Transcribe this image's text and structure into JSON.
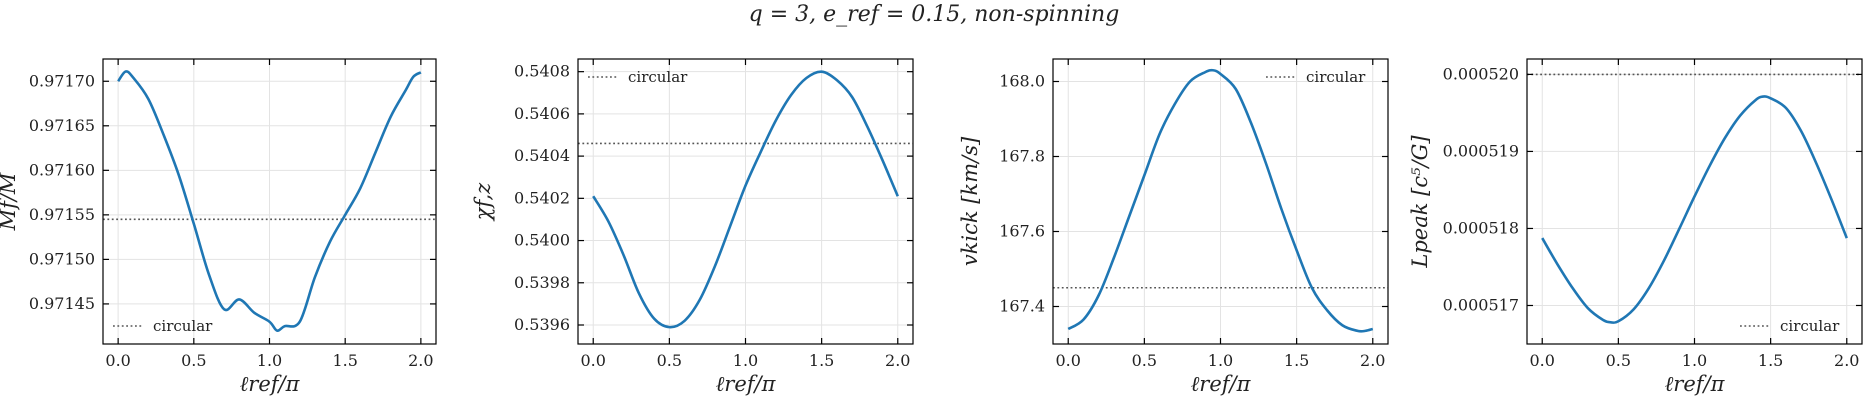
{
  "suptitle": "q = 3,  e_ref = 0.15,  non-spinning",
  "colors": {
    "series": "#1f77b4",
    "circular": "#555555",
    "grid": "#e3e3e3",
    "axis": "#000000"
  },
  "chart_data": [
    {
      "type": "line",
      "title": "",
      "xlabel": "ℓref/π",
      "ylabel": "Mf/M",
      "xlim": [
        -0.1,
        2.1
      ],
      "ylim": [
        0.971405,
        0.971725
      ],
      "xticks": [
        0.0,
        0.5,
        1.0,
        1.5,
        2.0
      ],
      "xtick_labels": [
        "0.0",
        "0.5",
        "1.0",
        "1.5",
        "2.0"
      ],
      "yticks": [
        0.97145,
        0.9715,
        0.97155,
        0.9716,
        0.97165,
        0.9717
      ],
      "ytick_labels": [
        "0.97145",
        "0.97150",
        "0.97155",
        "0.97160",
        "0.97165",
        "0.97170"
      ],
      "grid": true,
      "legend": {
        "placement": "lower-left",
        "entries": [
          "circular"
        ]
      },
      "series": [
        {
          "x": [
            0.0,
            0.05,
            0.1,
            0.2,
            0.3,
            0.4,
            0.5,
            0.6,
            0.7,
            0.8,
            0.9,
            1.0,
            1.05,
            1.1,
            1.2,
            1.3,
            1.4,
            1.5,
            1.6,
            1.7,
            1.8,
            1.9,
            1.95,
            2.0
          ],
          "y": [
            0.9717,
            0.971711,
            0.971704,
            0.97168,
            0.97164,
            0.971595,
            0.97154,
            0.971483,
            0.971444,
            0.971455,
            0.97144,
            0.97143,
            0.97142,
            0.971425,
            0.97143,
            0.97148,
            0.97152,
            0.97155,
            0.97158,
            0.97162,
            0.97166,
            0.97169,
            0.971705,
            0.97171
          ]
        }
      ],
      "reference": {
        "label": "circular",
        "y": 0.971545
      }
    },
    {
      "type": "line",
      "title": "",
      "xlabel": "ℓref/π",
      "ylabel": "χf,z",
      "xlim": [
        -0.1,
        2.1
      ],
      "ylim": [
        0.53951,
        0.54086
      ],
      "xticks": [
        0.0,
        0.5,
        1.0,
        1.5,
        2.0
      ],
      "xtick_labels": [
        "0.0",
        "0.5",
        "1.0",
        "1.5",
        "2.0"
      ],
      "yticks": [
        0.5396,
        0.5398,
        0.54,
        0.5402,
        0.5404,
        0.5406,
        0.5408
      ],
      "ytick_labels": [
        "0.5396",
        "0.5398",
        "0.5400",
        "0.5402",
        "0.5404",
        "0.5406",
        "0.5408"
      ],
      "grid": true,
      "legend": {
        "placement": "upper-left",
        "entries": [
          "circular"
        ]
      },
      "series": [
        {
          "x": [
            0.0,
            0.1,
            0.2,
            0.3,
            0.4,
            0.5,
            0.6,
            0.7,
            0.8,
            0.9,
            1.0,
            1.1,
            1.2,
            1.3,
            1.4,
            1.5,
            1.6,
            1.7,
            1.8,
            1.9,
            2.0
          ],
          "y": [
            0.54021,
            0.54009,
            0.53993,
            0.53975,
            0.53963,
            0.53959,
            0.53962,
            0.53972,
            0.53988,
            0.54007,
            0.54026,
            0.54042,
            0.54057,
            0.54069,
            0.54077,
            0.5408,
            0.54076,
            0.54068,
            0.54054,
            0.54038,
            0.54021
          ]
        }
      ],
      "reference": {
        "label": "circular",
        "y": 0.54046
      }
    },
    {
      "type": "line",
      "title": "",
      "xlabel": "ℓref/π",
      "ylabel": "vkick [km/s]",
      "xlim": [
        -0.1,
        2.1
      ],
      "ylim": [
        167.3,
        168.06
      ],
      "xticks": [
        0.0,
        0.5,
        1.0,
        1.5,
        2.0
      ],
      "xtick_labels": [
        "0.0",
        "0.5",
        "1.0",
        "1.5",
        "2.0"
      ],
      "yticks": [
        167.4,
        167.6,
        167.8,
        168.0
      ],
      "ytick_labels": [
        "167.4",
        "167.6",
        "167.8",
        "168.0"
      ],
      "grid": true,
      "legend": {
        "placement": "upper-right",
        "entries": [
          "circular"
        ]
      },
      "series": [
        {
          "x": [
            0.0,
            0.1,
            0.2,
            0.3,
            0.4,
            0.5,
            0.6,
            0.7,
            0.8,
            0.9,
            0.95,
            1.0,
            1.1,
            1.2,
            1.3,
            1.4,
            1.5,
            1.6,
            1.7,
            1.8,
            1.9,
            1.95,
            2.0
          ],
          "y": [
            167.34,
            167.365,
            167.43,
            167.53,
            167.64,
            167.75,
            167.86,
            167.94,
            168.0,
            168.025,
            168.03,
            168.02,
            167.98,
            167.89,
            167.78,
            167.66,
            167.55,
            167.45,
            167.39,
            167.35,
            167.335,
            167.335,
            167.34
          ]
        }
      ],
      "reference": {
        "label": "circular",
        "y": 167.45
      }
    },
    {
      "type": "line",
      "title": "",
      "xlabel": "ℓref/π",
      "ylabel": "Lpeak [c⁵/G]",
      "xlim": [
        -0.1,
        2.1
      ],
      "ylim": [
        0.0005165,
        0.0005202
      ],
      "xticks": [
        0.0,
        0.5,
        1.0,
        1.5,
        2.0
      ],
      "xtick_labels": [
        "0.0",
        "0.5",
        "1.0",
        "1.5",
        "2.0"
      ],
      "yticks": [
        0.000517,
        0.000518,
        0.000519,
        0.00052
      ],
      "ytick_labels": [
        "0.000517",
        "0.000518",
        "0.000519",
        "0.000520"
      ],
      "grid": true,
      "legend": {
        "placement": "lower-right",
        "entries": [
          "circular"
        ]
      },
      "series": [
        {
          "x": [
            0.0,
            0.1,
            0.2,
            0.3,
            0.4,
            0.45,
            0.5,
            0.6,
            0.7,
            0.8,
            0.9,
            1.0,
            1.1,
            1.2,
            1.3,
            1.4,
            1.45,
            1.5,
            1.6,
            1.7,
            1.8,
            1.9,
            2.0
          ],
          "y": [
            0.000517875,
            0.000517535,
            0.000517225,
            0.000516965,
            0.000516812,
            0.000516782,
            0.000516795,
            0.00051695,
            0.000517225,
            0.000517585,
            0.000517995,
            0.000518415,
            0.000518815,
            0.000519175,
            0.000519465,
            0.000519665,
            0.000519712,
            0.00051969,
            0.000519565,
            0.000519265,
            0.000518845,
            0.000518375,
            0.000517875
          ]
        }
      ],
      "reference": {
        "label": "circular",
        "y": 0.00052
      }
    }
  ]
}
